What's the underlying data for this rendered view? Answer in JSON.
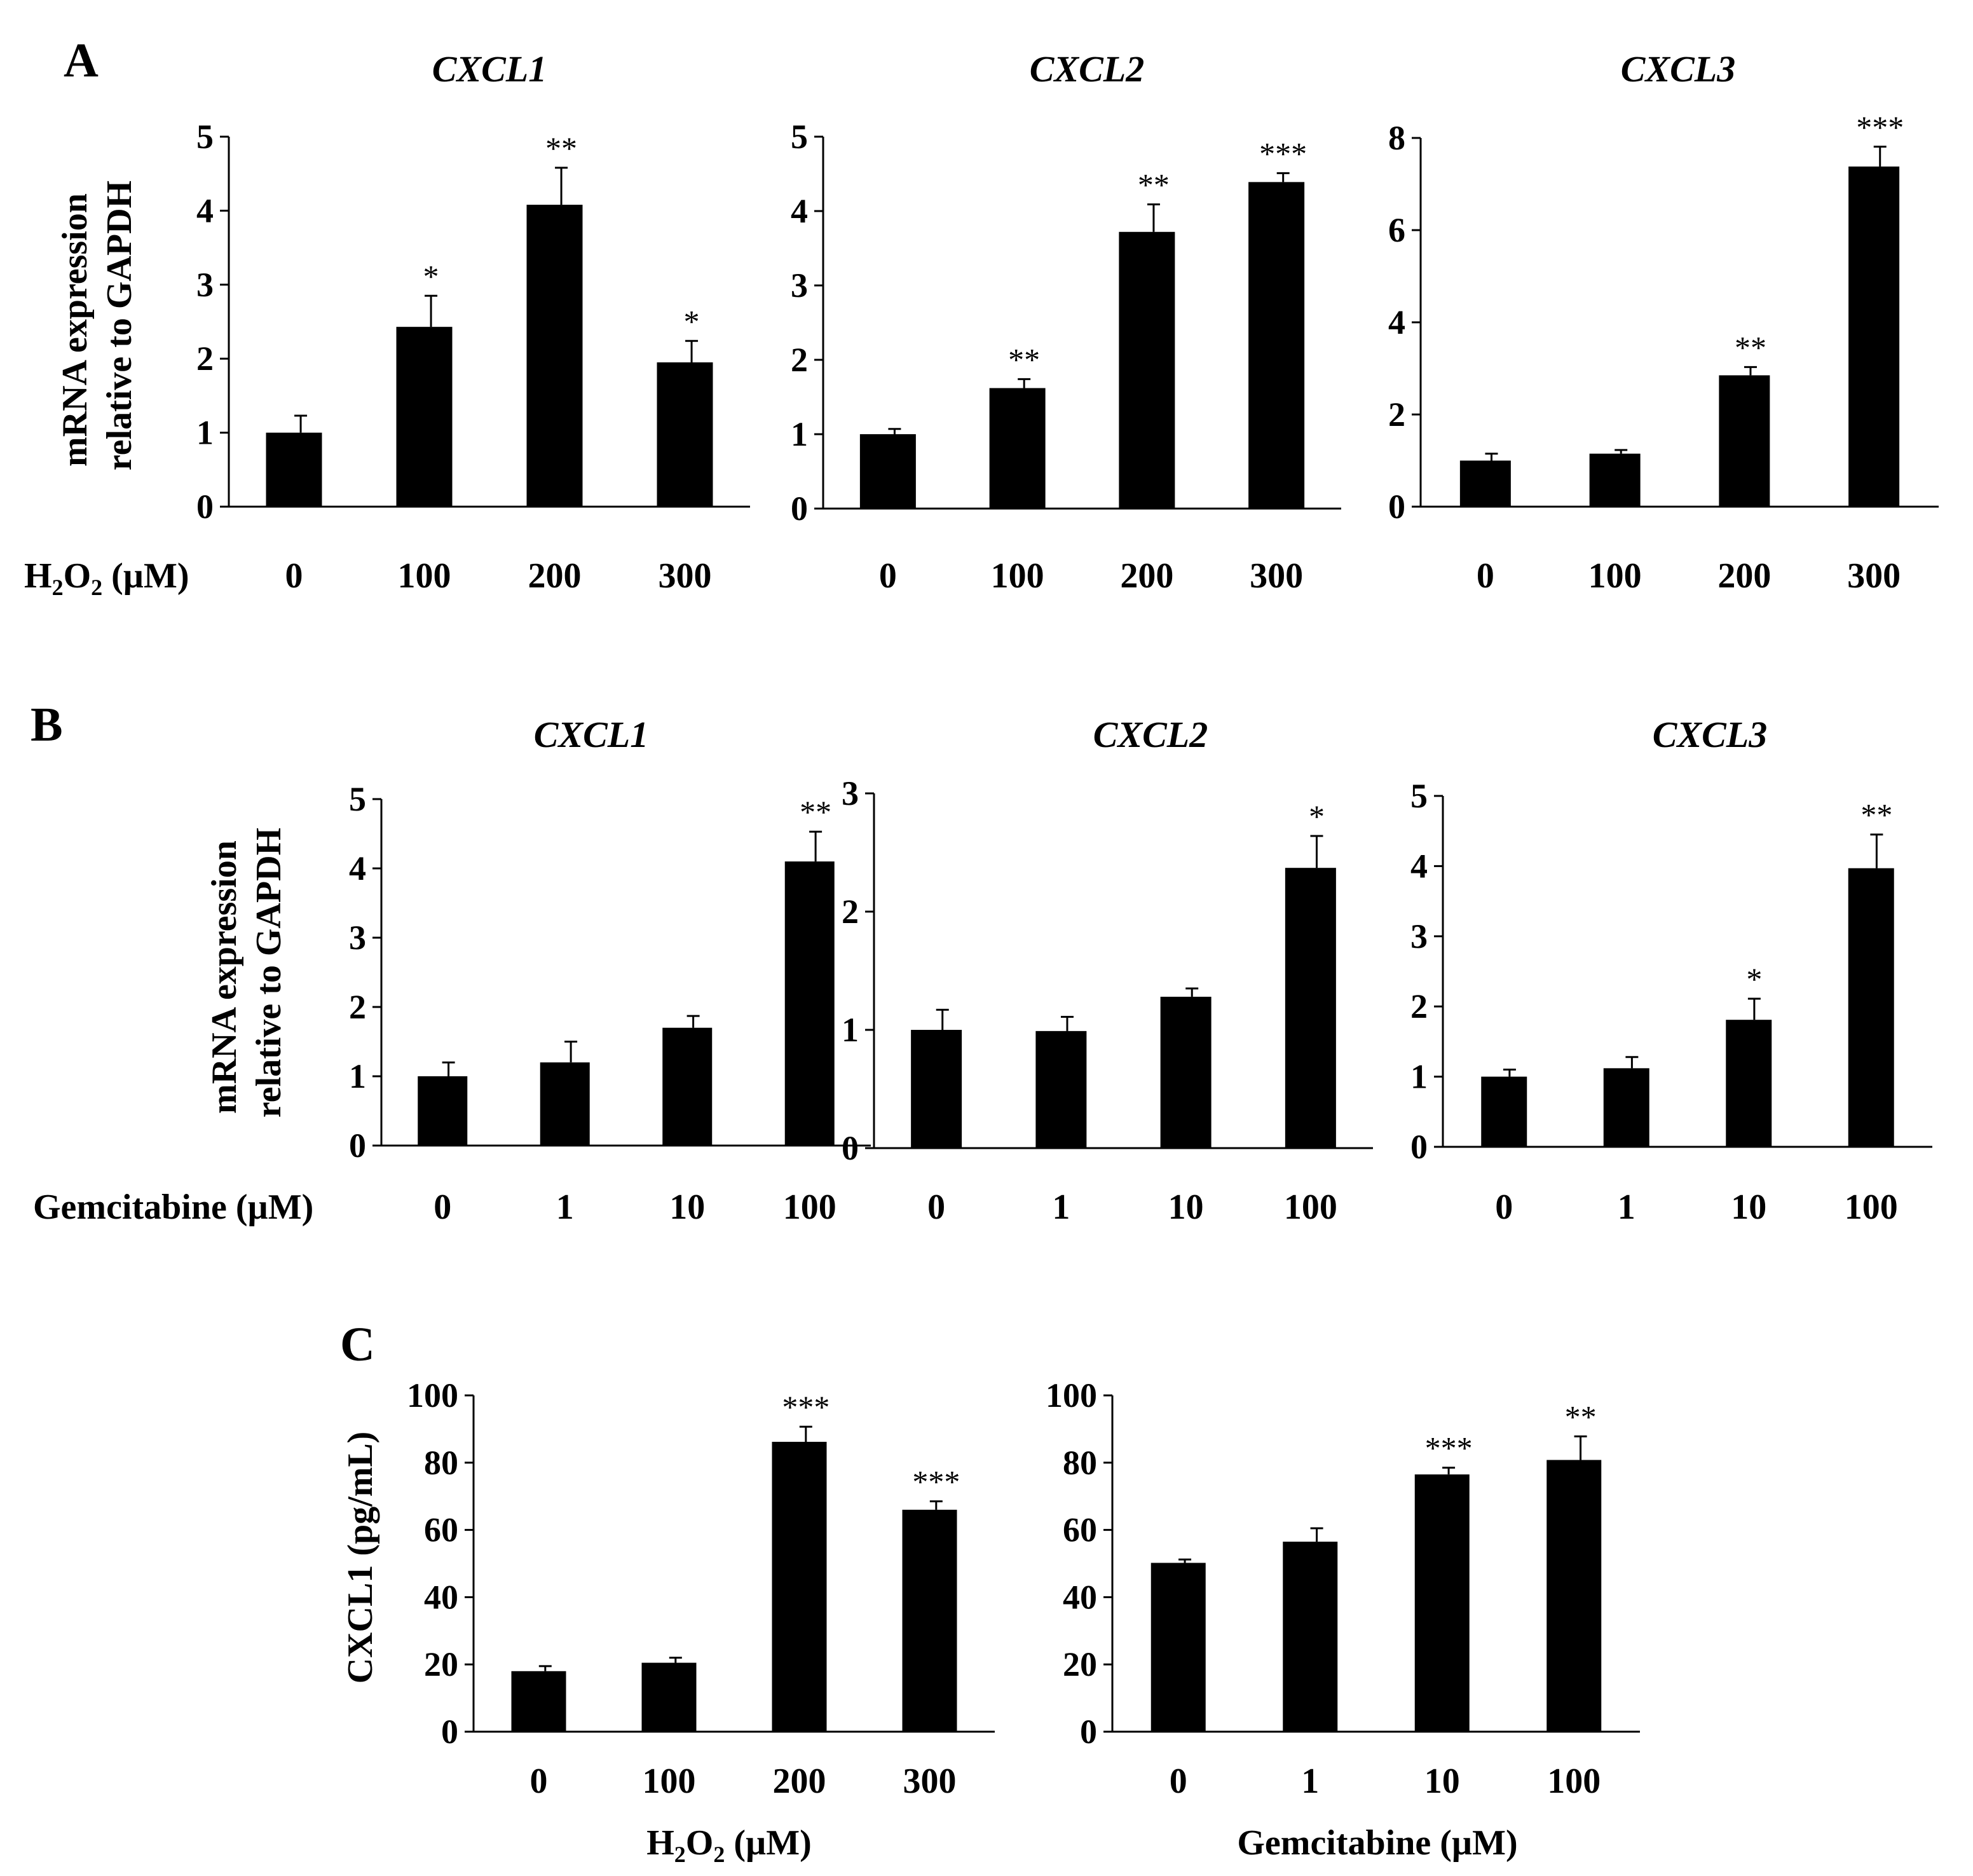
{
  "figure": {
    "row_labels": {
      "a": "A",
      "b": "B",
      "c": "C"
    },
    "row_a_xlabel": {
      "main": "H",
      "s1": "2",
      "o": "O",
      "s2": "2",
      "unit": " (µM)"
    },
    "row_b_xlabel": "Gemcitabine (µM)",
    "row_a_ylabel": [
      "mRNA expression",
      "relative to GAPDH"
    ],
    "row_b_ylabel": [
      "mRNA expression",
      "relative to GAPDH"
    ],
    "row_c_ylabel": "CXCL1 (pg/mL)",
    "c1_xlabel": {
      "main": "H",
      "s1": "2",
      "o": "O",
      "s2": "2",
      "unit": " (µM)"
    },
    "c2_xlabel": "Gemcitabine (µM)"
  },
  "chart_data": [
    {
      "id": "A1",
      "type": "bar",
      "title": "CXCL1",
      "categories": [
        "0",
        "100",
        "200",
        "300"
      ],
      "values": [
        1.0,
        2.43,
        4.08,
        1.95
      ],
      "errors": [
        0.23,
        0.42,
        0.5,
        0.29
      ],
      "significance": [
        "",
        "*",
        "**",
        "*"
      ],
      "ylim": [
        0,
        5
      ],
      "yticks": [
        "0",
        "1",
        "2",
        "3",
        "4",
        "5"
      ],
      "xlabel": "H2O2 (µM)",
      "ylabel": "mRNA expression relative to GAPDH"
    },
    {
      "id": "A2",
      "type": "bar",
      "title": "CXCL2",
      "categories": [
        "0",
        "100",
        "200",
        "300"
      ],
      "values": [
        1.0,
        1.62,
        3.72,
        4.39
      ],
      "errors": [
        0.07,
        0.12,
        0.37,
        0.12
      ],
      "significance": [
        "",
        "**",
        "**",
        "***"
      ],
      "ylim": [
        0,
        5
      ],
      "yticks": [
        "0",
        "1",
        "2",
        "3",
        "4",
        "5"
      ],
      "xlabel": "H2O2 (µM)",
      "ylabel": "mRNA expression relative to GAPDH"
    },
    {
      "id": "A3",
      "type": "bar",
      "title": "CXCL3",
      "categories": [
        "0",
        "100",
        "200",
        "300"
      ],
      "values": [
        1.0,
        1.15,
        2.85,
        7.38
      ],
      "errors": [
        0.15,
        0.08,
        0.18,
        0.43
      ],
      "significance": [
        "",
        "",
        "**",
        "***"
      ],
      "ylim": [
        0,
        8
      ],
      "yticks": [
        "0",
        "2",
        "4",
        "6",
        "8"
      ],
      "xlabel": "H2O2 (µM)",
      "ylabel": "mRNA expression relative to GAPDH"
    },
    {
      "id": "B1",
      "type": "bar",
      "title": "CXCL1",
      "categories": [
        "0",
        "1",
        "10",
        "100"
      ],
      "values": [
        1.0,
        1.2,
        1.7,
        4.1
      ],
      "errors": [
        0.2,
        0.3,
        0.17,
        0.43
      ],
      "significance": [
        "",
        "",
        "",
        "**"
      ],
      "ylim": [
        0,
        5
      ],
      "yticks": [
        "0",
        "1",
        "2",
        "3",
        "4",
        "5"
      ],
      "xlabel": "Gemcitabine (µM)",
      "ylabel": "mRNA expression relative to GAPDH"
    },
    {
      "id": "B2",
      "type": "bar",
      "title": "CXCL2",
      "categories": [
        "0",
        "1",
        "10",
        "100"
      ],
      "values": [
        1.0,
        0.99,
        1.28,
        2.37
      ],
      "errors": [
        0.17,
        0.12,
        0.07,
        0.27
      ],
      "significance": [
        "",
        "",
        "",
        "*"
      ],
      "ylim": [
        0,
        3
      ],
      "yticks": [
        "0",
        "1",
        "2",
        "3"
      ],
      "xlabel": "Gemcitabine (µM)",
      "ylabel": "mRNA expression relative to GAPDH"
    },
    {
      "id": "B3",
      "type": "bar",
      "title": "CXCL3",
      "categories": [
        "0",
        "1",
        "10",
        "100"
      ],
      "values": [
        1.0,
        1.12,
        1.81,
        3.97
      ],
      "errors": [
        0.1,
        0.16,
        0.3,
        0.48
      ],
      "significance": [
        "",
        "",
        "*",
        "**"
      ],
      "ylim": [
        0,
        5
      ],
      "yticks": [
        "0",
        "1",
        "2",
        "3",
        "4",
        "5"
      ],
      "xlabel": "Gemcitabine (µM)",
      "ylabel": "mRNA expression relative to GAPDH"
    },
    {
      "id": "C1",
      "type": "bar",
      "title": "",
      "categories": [
        "0",
        "100",
        "200",
        "300"
      ],
      "values": [
        18.0,
        20.5,
        86.2,
        66.0
      ],
      "errors": [
        1.5,
        1.5,
        4.5,
        2.5
      ],
      "significance": [
        "",
        "",
        "***",
        "***"
      ],
      "ylim": [
        0,
        100
      ],
      "yticks": [
        "0",
        "20",
        "40",
        "60",
        "80",
        "100"
      ],
      "xlabel": "H2O2 (µM)",
      "ylabel": "CXCL1 (pg/mL)"
    },
    {
      "id": "C2",
      "type": "bar",
      "title": "",
      "categories": [
        "0",
        "1",
        "10",
        "100"
      ],
      "values": [
        50.2,
        56.5,
        76.5,
        80.8
      ],
      "errors": [
        1.0,
        4.0,
        2.0,
        7.0
      ],
      "significance": [
        "",
        "",
        "***",
        "**"
      ],
      "ylim": [
        0,
        100
      ],
      "yticks": [
        "0",
        "20",
        "40",
        "60",
        "80",
        "100"
      ],
      "xlabel": "Gemcitabine (µM)",
      "ylabel": ""
    }
  ]
}
